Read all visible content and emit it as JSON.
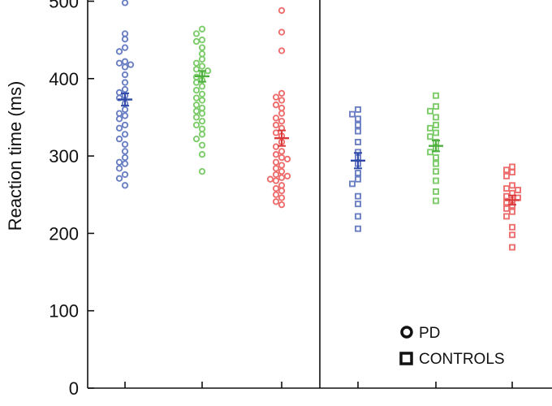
{
  "chart_data": {
    "type": "scatter",
    "ylabel": "Reaction time (ms)",
    "ylim": [
      0,
      500
    ],
    "yticks": [
      0,
      100,
      200,
      300,
      400,
      500
    ],
    "ytick_labels": [
      "0",
      "100",
      "200",
      "300",
      "400",
      "500"
    ],
    "xtick_labels": [
      "",
      "",
      "",
      "",
      "",
      ""
    ],
    "grid": false,
    "legend_position": "bottom-right",
    "legend": [
      {
        "label": "PD",
        "marker": "circle"
      },
      {
        "label": "CONTROLS",
        "marker": "square"
      }
    ],
    "groups": [
      {
        "legend": "PD",
        "marker": "circle",
        "color": "#6b7fc4",
        "mean_color": "#2e48a8",
        "mean": 373,
        "sem": 8,
        "values": [
          498,
          505,
          458,
          451,
          440,
          435,
          422,
          420,
          418,
          415,
          405,
          395,
          386,
          382,
          378,
          375,
          368,
          360,
          355,
          352,
          348,
          340,
          336,
          328,
          322,
          315,
          306,
          298,
          292,
          290,
          284,
          276,
          271,
          262
        ]
      },
      {
        "legend": "PD",
        "marker": "circle",
        "color": "#7ccc6a",
        "mean_color": "#4caf3e",
        "mean": 403,
        "sem": 7,
        "values": [
          464,
          458,
          450,
          448,
          440,
          432,
          425,
          420,
          416,
          412,
          410,
          406,
          402,
          398,
          395,
          390,
          385,
          380,
          375,
          372,
          366,
          362,
          358,
          355,
          350,
          345,
          340,
          335,
          328,
          322,
          314,
          302,
          280
        ]
      },
      {
        "legend": "PD",
        "marker": "circle",
        "color": "#ee6e6e",
        "mean_color": "#d93a3a",
        "mean": 323,
        "sem": 10,
        "values": [
          488,
          460,
          436,
          381,
          376,
          372,
          366,
          362,
          355,
          349,
          345,
          340,
          336,
          330,
          326,
          318,
          312,
          306,
          302,
          298,
          296,
          292,
          288,
          284,
          280,
          276,
          274,
          272,
          270,
          268,
          262,
          258,
          255,
          250,
          246,
          241,
          237
        ]
      },
      {
        "legend": "CONTROLS",
        "marker": "square",
        "color": "#6b7fc4",
        "mean_color": "#2e48a8",
        "mean": 294,
        "sem": 10,
        "values": [
          360,
          354,
          348,
          340,
          332,
          318,
          305,
          298,
          290,
          278,
          270,
          264,
          248,
          238,
          222,
          206
        ]
      },
      {
        "legend": "CONTROLS",
        "marker": "square",
        "color": "#7ccc6a",
        "mean_color": "#4caf3e",
        "mean": 313,
        "sem": 7,
        "values": [
          378,
          364,
          358,
          350,
          340,
          336,
          330,
          325,
          318,
          310,
          305,
          298,
          290,
          280,
          268,
          254,
          242
        ]
      },
      {
        "legend": "CONTROLS",
        "marker": "square",
        "color": "#ee6e6e",
        "mean_color": "#d93a3a",
        "mean": 243,
        "sem": 6,
        "values": [
          286,
          282,
          279,
          274,
          262,
          258,
          256,
          252,
          248,
          246,
          243,
          240,
          236,
          232,
          228,
          222,
          208,
          198,
          182
        ]
      }
    ]
  }
}
